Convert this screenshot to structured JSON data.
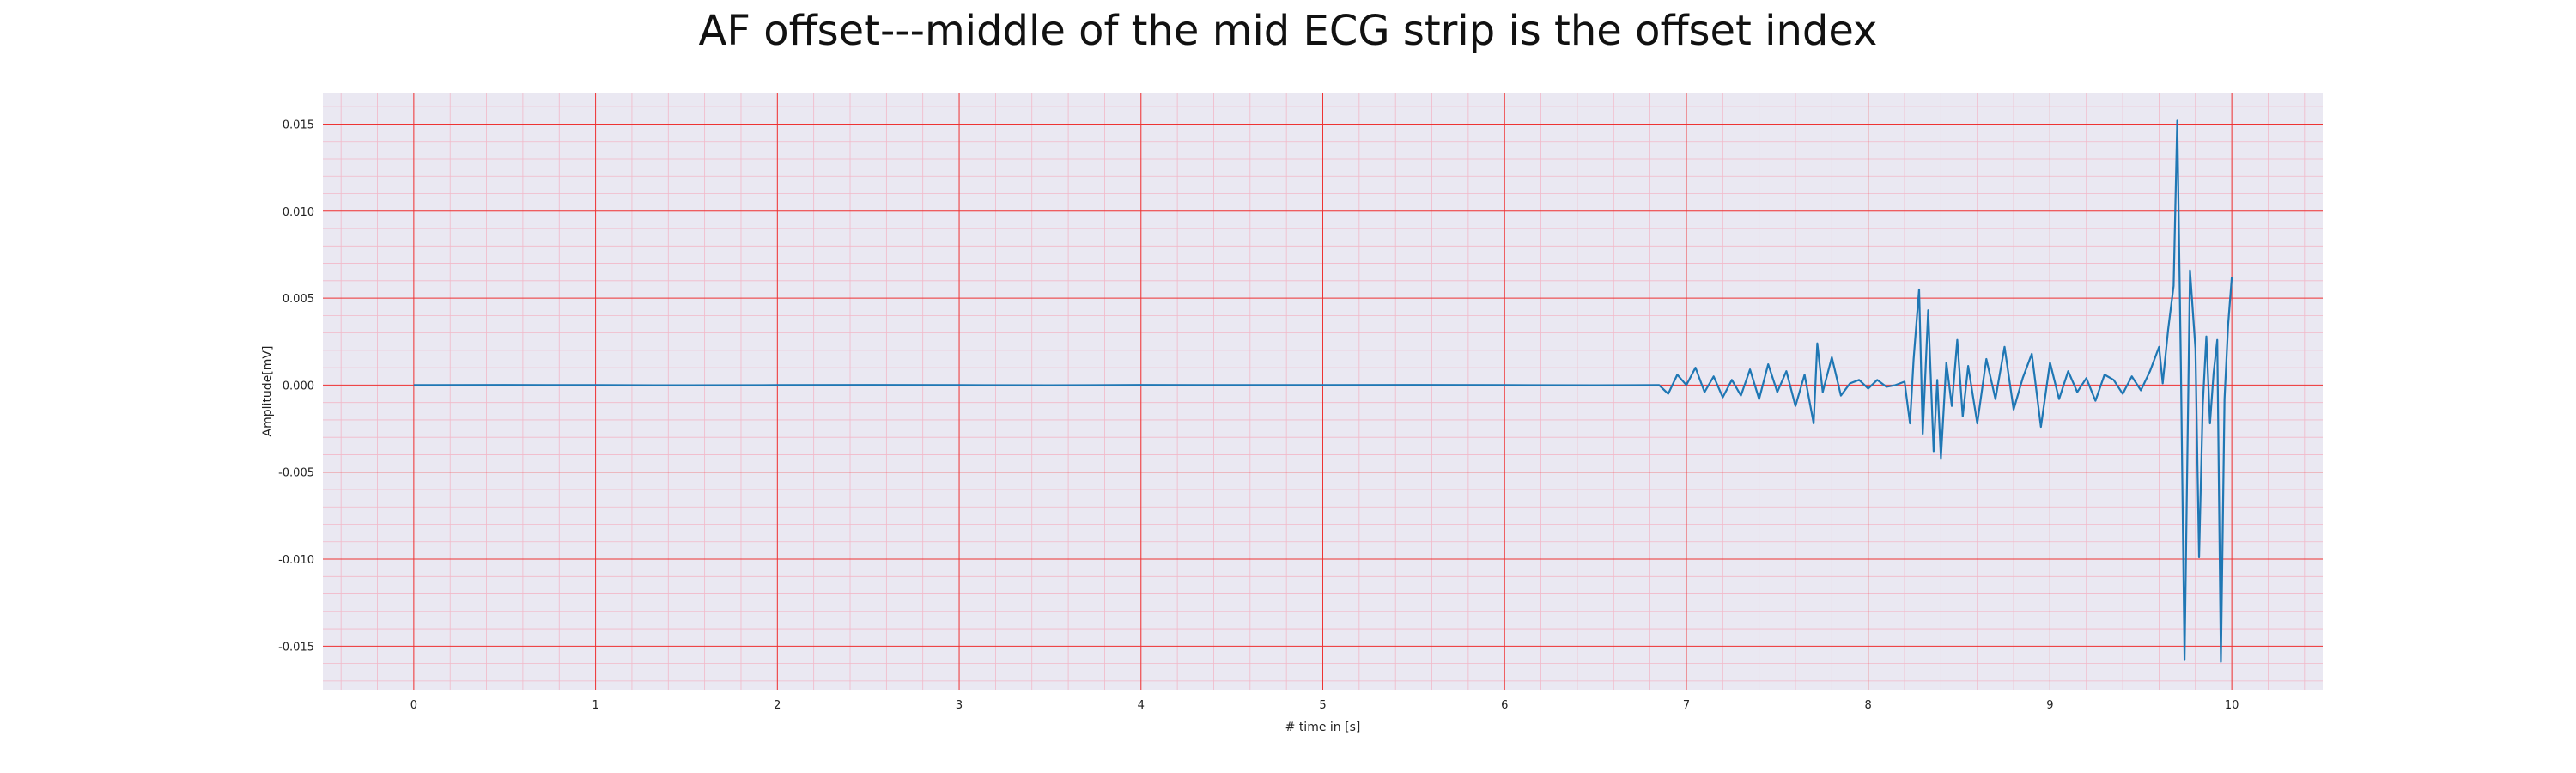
{
  "chart_data": {
    "type": "line",
    "title": "AF offset---middle of the mid ECG strip is the offset index",
    "xlabel": "# time in [s]",
    "ylabel": "Amplitude[mV]",
    "xlim": [
      -0.5,
      10.5
    ],
    "ylim": [
      -0.0175,
      0.0168
    ],
    "xticks": [
      0,
      1,
      2,
      3,
      4,
      5,
      6,
      7,
      8,
      9,
      10
    ],
    "xtick_labels": [
      "0",
      "1",
      "2",
      "3",
      "4",
      "5",
      "6",
      "7",
      "8",
      "9",
      "10"
    ],
    "yticks": [
      -0.015,
      -0.01,
      -0.005,
      0.0,
      0.005,
      0.01,
      0.015
    ],
    "ytick_labels": [
      "-0.015",
      "-0.010",
      "-0.005",
      "0.000",
      "0.005",
      "0.010",
      "0.015"
    ],
    "grid": true,
    "minor_grid": true,
    "legend": "none",
    "colors": {
      "plot_background": "#eae8f2",
      "major_grid": "#ee3333",
      "minor_grid": "#f2b8c8",
      "series": "#1f77b4"
    },
    "series": [
      {
        "x": [
          0,
          0.5,
          1,
          1.5,
          2,
          2.5,
          3,
          3.5,
          4,
          4.5,
          5,
          5.5,
          6,
          6.5,
          6.85,
          6.9,
          6.95,
          7.0,
          7.05,
          7.1,
          7.15,
          7.2,
          7.25,
          7.3,
          7.35,
          7.4,
          7.45,
          7.5,
          7.55,
          7.6,
          7.65,
          7.7,
          7.72,
          7.75,
          7.8,
          7.85,
          7.9,
          7.95,
          8.0,
          8.05,
          8.1,
          8.15,
          8.2,
          8.23,
          8.25,
          8.28,
          8.3,
          8.33,
          8.36,
          8.38,
          8.4,
          8.43,
          8.46,
          8.49,
          8.52,
          8.55,
          8.6,
          8.65,
          8.7,
          8.75,
          8.8,
          8.85,
          8.9,
          8.95,
          9.0,
          9.05,
          9.1,
          9.15,
          9.2,
          9.25,
          9.3,
          9.35,
          9.4,
          9.45,
          9.5,
          9.55,
          9.6,
          9.62,
          9.65,
          9.68,
          9.7,
          9.72,
          9.74,
          9.77,
          9.8,
          9.82,
          9.84,
          9.86,
          9.88,
          9.9,
          9.92,
          9.94,
          9.96,
          9.98,
          10.0
        ],
        "y": [
          0,
          1e-05,
          0,
          -1e-05,
          0,
          1e-05,
          0,
          -1e-05,
          1e-05,
          0,
          0,
          1e-05,
          0,
          -1e-05,
          0,
          -0.0005,
          0.0006,
          0.0,
          0.001,
          -0.0004,
          0.0005,
          -0.0007,
          0.0003,
          -0.0006,
          0.0009,
          -0.0008,
          0.0012,
          -0.0004,
          0.0008,
          -0.0012,
          0.0006,
          -0.0022,
          0.0024,
          -0.0004,
          0.0016,
          -0.0006,
          0.0001,
          0.0003,
          -0.0002,
          0.0003,
          -0.0001,
          0.0,
          0.0002,
          -0.0022,
          0.0015,
          0.0055,
          -0.0028,
          0.0043,
          -0.0038,
          0.0003,
          -0.0042,
          0.0013,
          -0.0012,
          0.0026,
          -0.0018,
          0.0011,
          -0.0022,
          0.0015,
          -0.0008,
          0.0022,
          -0.0014,
          0.0004,
          0.0018,
          -0.0024,
          0.0013,
          -0.0008,
          0.0008,
          -0.0004,
          0.0004,
          -0.0009,
          0.0006,
          0.0003,
          -0.0005,
          0.0005,
          -0.0003,
          0.0008,
          0.0022,
          0.0001,
          0.0032,
          0.0057,
          0.0152,
          0.0011,
          -0.0158,
          0.0066,
          0.0021,
          -0.0099,
          -0.0012,
          0.0028,
          -0.0022,
          0.0007,
          0.0026,
          -0.0159,
          -0.0008,
          0.0035,
          0.0062
        ]
      }
    ]
  }
}
